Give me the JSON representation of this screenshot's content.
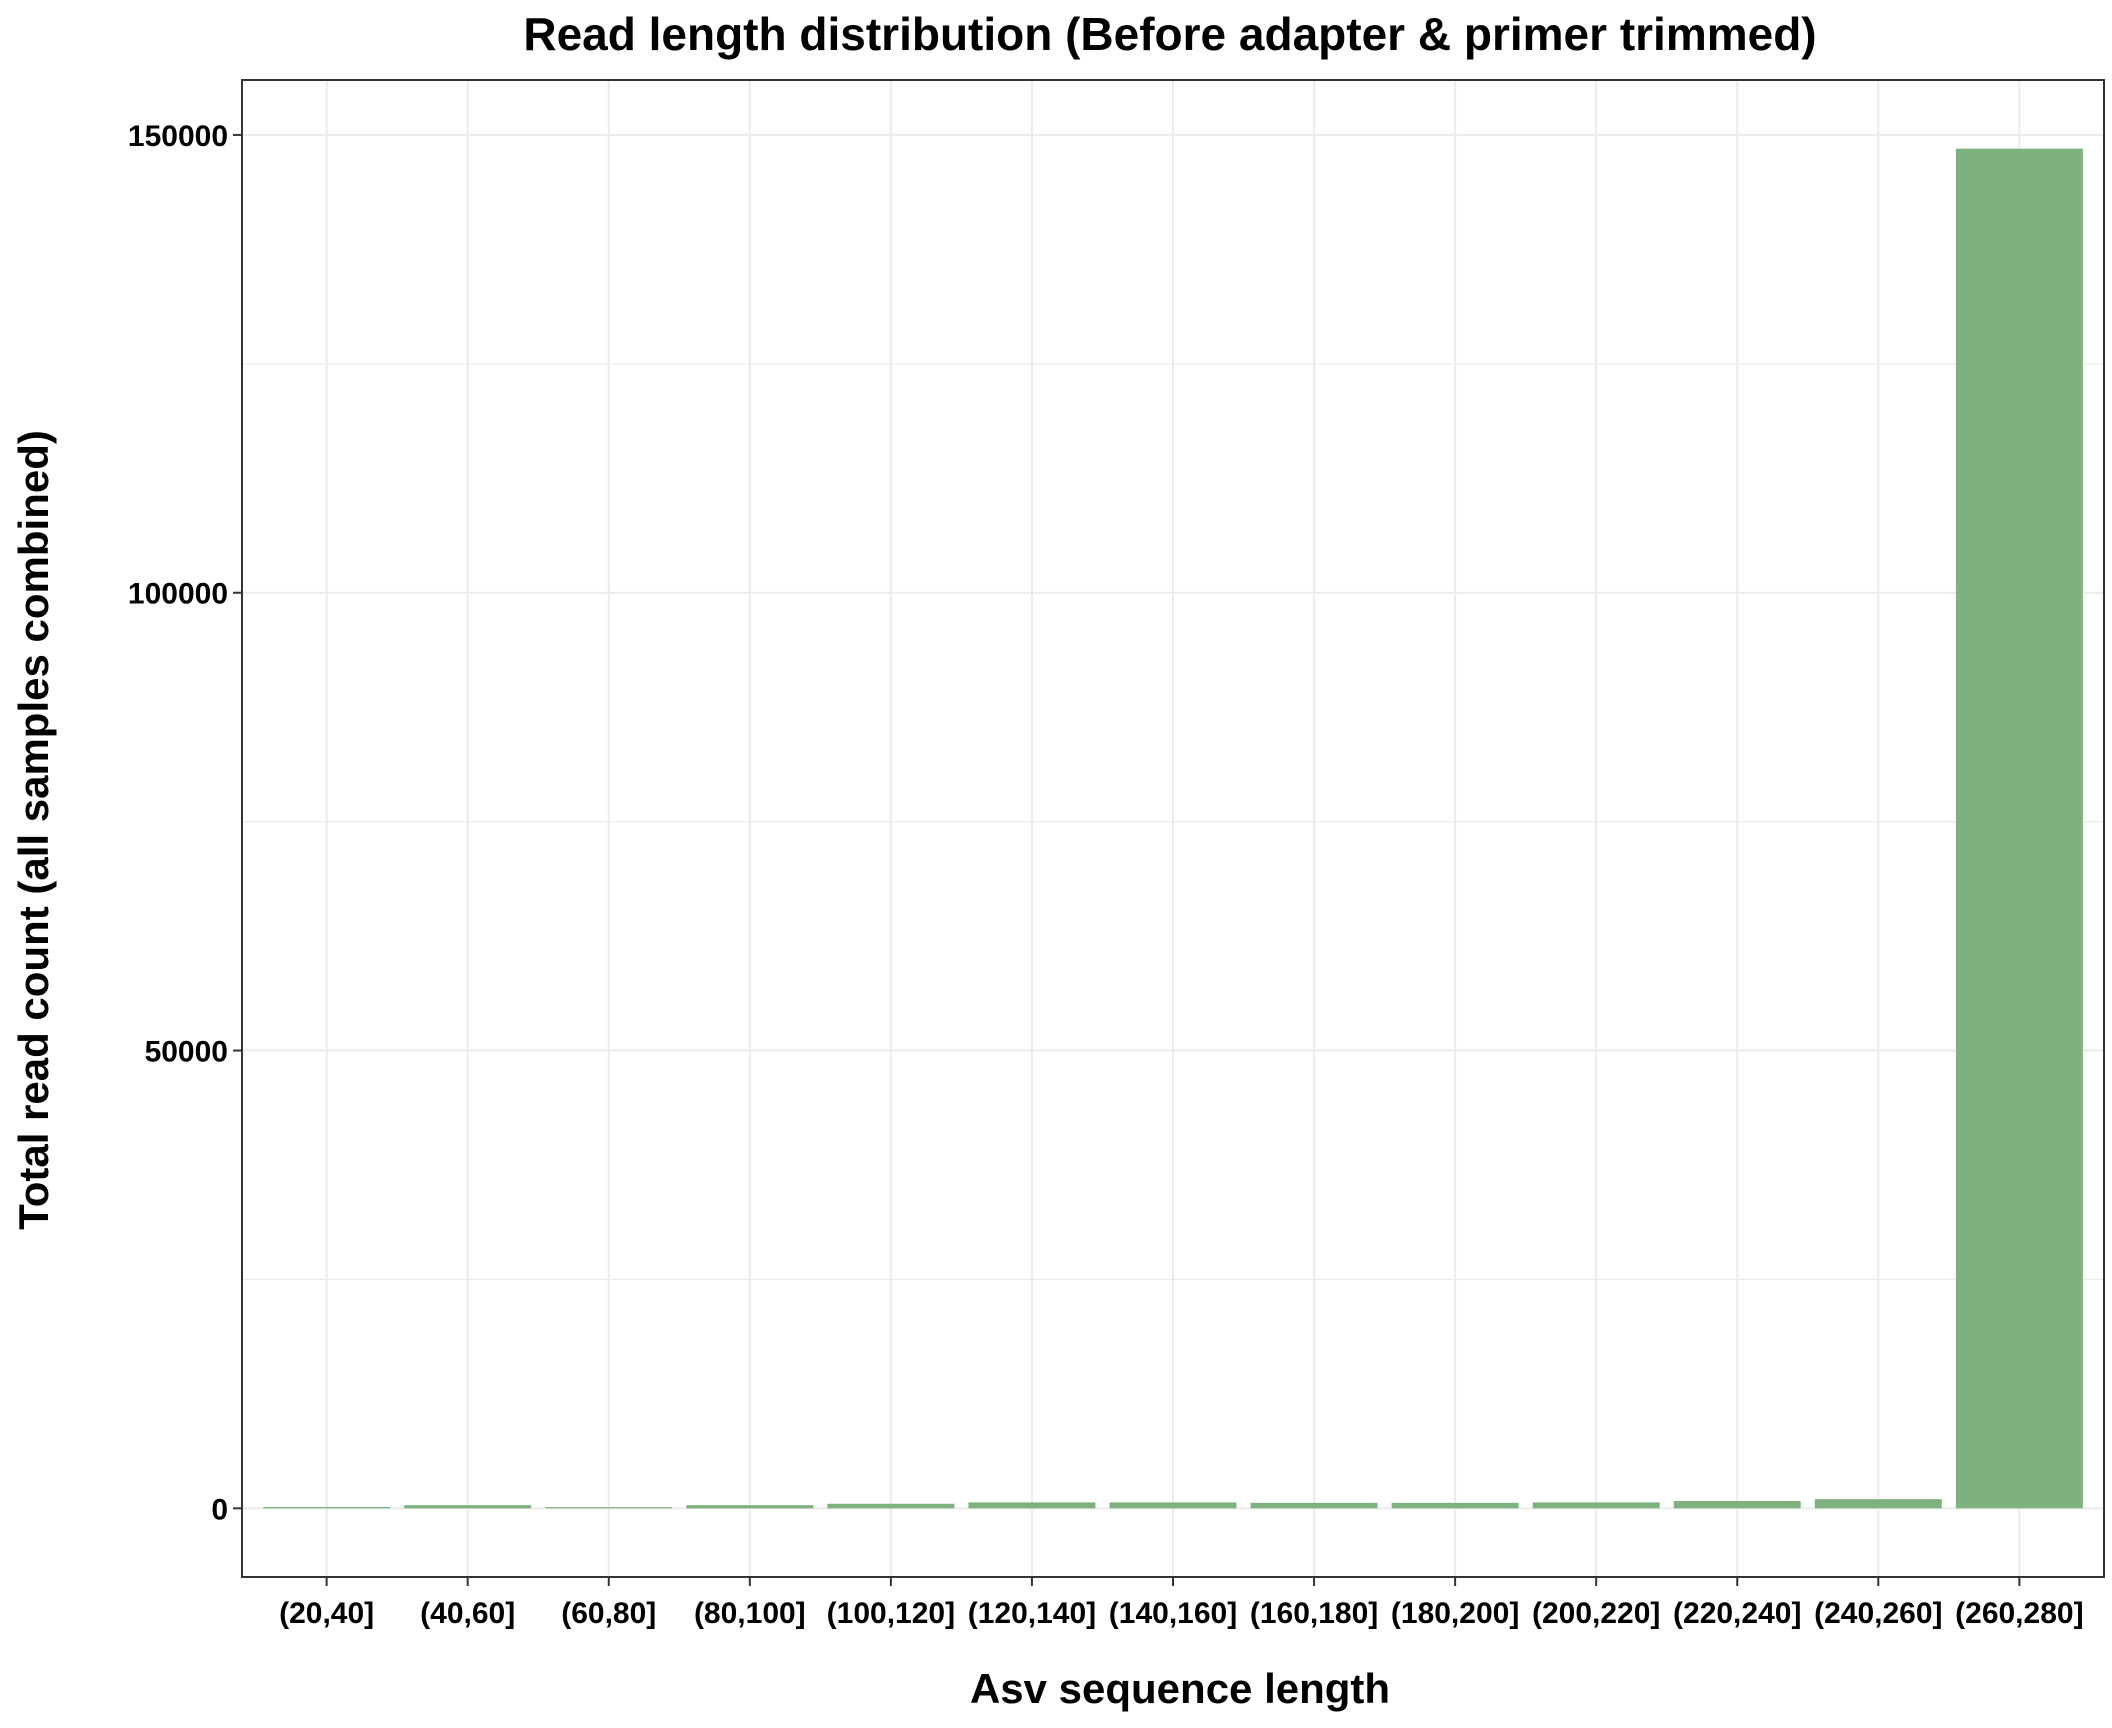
{
  "chart_data": {
    "type": "bar",
    "title": "Read length distribution (Before adapter & primer trimmed)",
    "xlabel": "Asv sequence length",
    "ylabel": "Total read count (all samples combined)",
    "categories": [
      "(20,40]",
      "(40,60]",
      "(60,80]",
      "(80,100]",
      "(100,120]",
      "(120,140]",
      "(140,160]",
      "(160,180]",
      "(180,200]",
      "(200,220]",
      "(220,240]",
      "(240,260]",
      "(260,280]"
    ],
    "values": [
      150,
      350,
      130,
      350,
      500,
      650,
      650,
      600,
      600,
      650,
      800,
      1000,
      148500
    ],
    "yticks": [
      0,
      50000,
      100000,
      150000
    ],
    "ytick_labels": [
      "0",
      "50000",
      "100000",
      "150000"
    ],
    "ylim": [
      -7500,
      156000
    ],
    "grid": true,
    "colors": {
      "bar": "#7fb07f",
      "grid": "#ebebeb",
      "panel_border": "#333333",
      "axis_ticks": "#333333"
    }
  }
}
